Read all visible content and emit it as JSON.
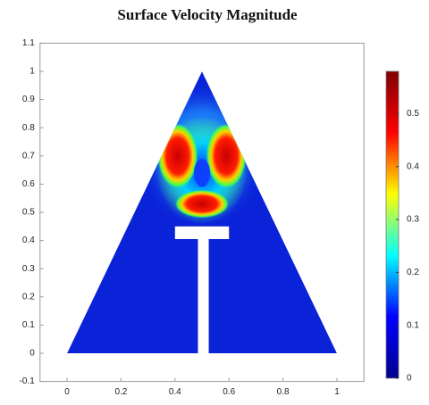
{
  "chart_data": {
    "type": "heatmap",
    "title": "Surface Velocity Magnitude",
    "xlim": [
      -0.1,
      1.1
    ],
    "ylim": [
      -0.1,
      1.1
    ],
    "xticks": [
      0,
      0.2,
      0.4,
      0.6,
      0.8,
      1
    ],
    "yticks": [
      -0.1,
      0,
      0.1,
      0.2,
      0.3,
      0.4,
      0.5,
      0.6,
      0.7,
      0.8,
      0.9,
      1,
      1.1
    ],
    "colormap": [
      "#00008f",
      "#0000ff",
      "#00ffff",
      "#ffff00",
      "#ff0000",
      "#800000"
    ],
    "colorbar": {
      "lim": [
        0,
        0.58
      ],
      "ticks": [
        0,
        0.1,
        0.2,
        0.3,
        0.4,
        0.5
      ]
    }
  }
}
